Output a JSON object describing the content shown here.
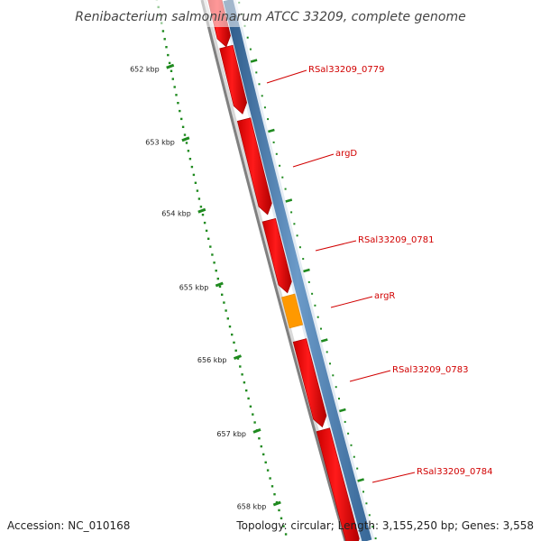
{
  "title": "Renibacterium salmoninarum ATCC 33209, complete genome",
  "accession": "Accession: NC_010168",
  "summary": "Topology: circular; Length: 3,155,250 bp; Genes: 3,558",
  "colors": {
    "gene_red": "#ff0000",
    "gene_orange": "#ff9900",
    "strand_blue": "#4a78a8",
    "backbone": "#808080",
    "tick_green": "#1f8a1f",
    "label_red": "#d10000"
  },
  "ticks": [
    {
      "label": "652 kbp"
    },
    {
      "label": "653 kbp"
    },
    {
      "label": "654 kbp"
    },
    {
      "label": "655 kbp"
    },
    {
      "label": "656 kbp"
    },
    {
      "label": "657 kbp"
    },
    {
      "label": "658 kbp"
    }
  ],
  "genes": [
    {
      "name": "RSal33209_0779",
      "color": "red"
    },
    {
      "name": "argD",
      "color": "red"
    },
    {
      "name": "RSal33209_0781",
      "color": "red"
    },
    {
      "name": "argR",
      "color": "orange"
    },
    {
      "name": "RSal33209_0783",
      "color": "red"
    },
    {
      "name": "RSal33209_0784",
      "color": "red"
    }
  ]
}
